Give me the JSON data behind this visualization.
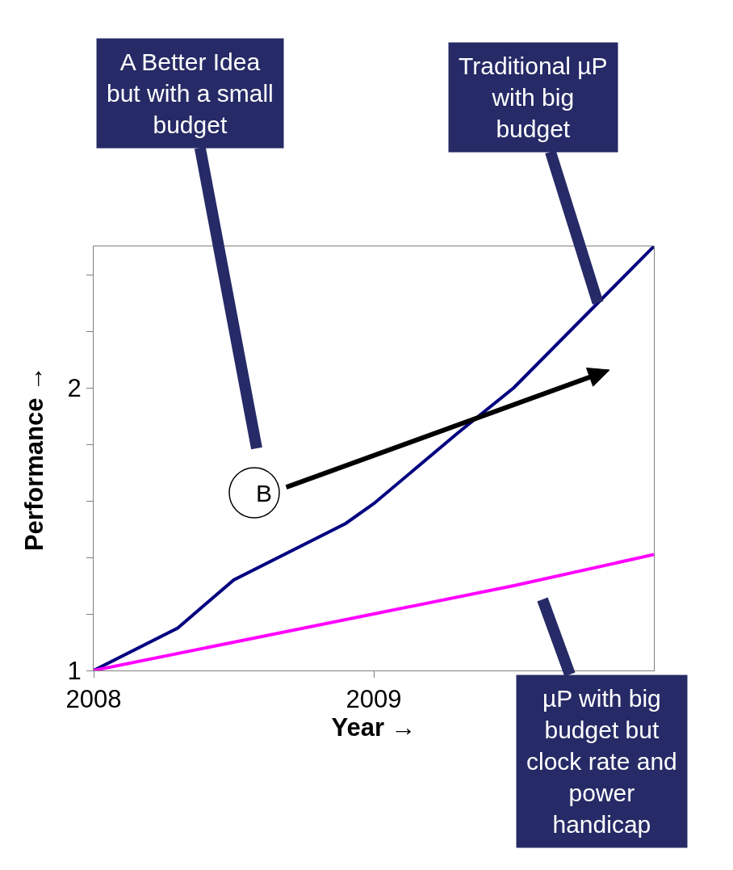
{
  "chart_data": {
    "type": "line",
    "xlabel": "Year →",
    "ylabel": "Performance →",
    "xlim": [
      2008,
      2010
    ],
    "xticks": [
      2008,
      2009
    ],
    "ylim": [
      1,
      2.5
    ],
    "yticks": [
      1,
      {
        "value": 1.2,
        "label": null
      },
      {
        "value": 1.4,
        "label": null
      },
      {
        "value": 1.6,
        "label": null
      },
      {
        "value": 1.8,
        "label": null
      },
      2,
      {
        "value": 2.2,
        "label": null
      },
      {
        "value": 2.4,
        "label": null
      }
    ],
    "marker": "none",
    "series": [
      {
        "color": "#000080",
        "x": [
          2008,
          2008.3,
          2008.5,
          2008.9,
          2009,
          2009.3,
          2009.5,
          2009.8,
          2010
        ],
        "values": [
          1.0,
          1.15,
          1.32,
          1.52,
          1.59,
          1.84,
          2.0,
          2.3,
          2.5
        ]
      },
      {
        "color": "#ff00ff",
        "x": [
          2008,
          2008.5,
          2009,
          2009.5,
          2010
        ],
        "values": [
          1.0,
          1.1,
          1.2,
          1.3,
          1.41
        ]
      }
    ],
    "annotations": [
      "A Better Idea\nbut with a small\nbudget",
      {
        "text": "Traditional µP\nwith big\nbudget",
        "x": 2009.8,
        "y": 2.3
      },
      "µP with big\nbudget but\nclock rate and\npower\nhandicap",
      "B"
    ]
  }
}
